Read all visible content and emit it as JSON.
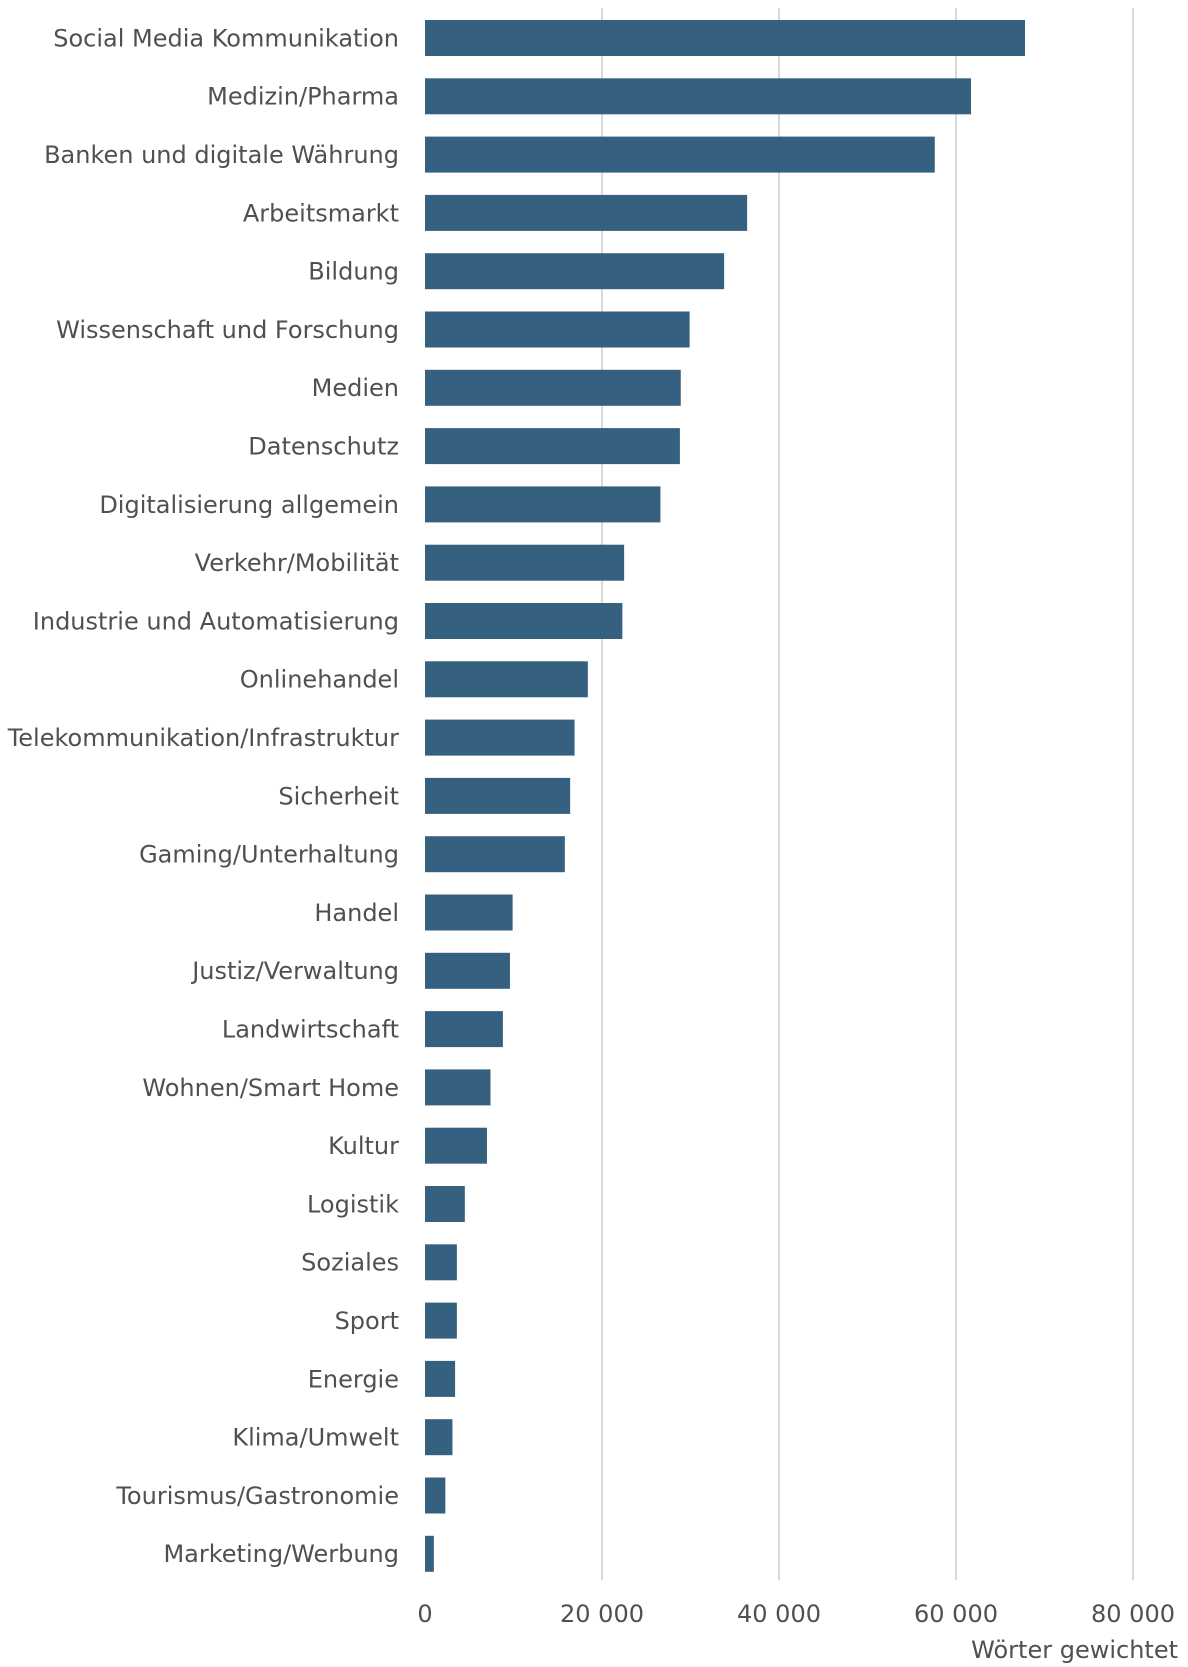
{
  "chart_data": {
    "type": "bar",
    "orientation": "horizontal",
    "title": "",
    "xlabel": "Wörter gewichtet",
    "ylabel": "",
    "xlim": [
      0,
      80000
    ],
    "x_ticks": [
      0,
      20000,
      40000,
      60000,
      80000
    ],
    "x_tick_labels": [
      "0",
      "20 000",
      "40 000",
      "60 000",
      "80 000"
    ],
    "grid": "vertical",
    "legend": "none",
    "bar_color": "#36607f",
    "categories": [
      "Social Media Kommunikation",
      "Medizin/Pharma",
      "Banken und digitale Währung",
      "Arbeitsmarkt",
      "Bildung",
      "Wissenschaft und Forschung",
      "Medien",
      "Datenschutz",
      "Digitalisierung allgemein",
      "Verkehr/Mobilität",
      "Industrie und Automatisierung",
      "Onlinehandel",
      "Telekommunikation/Infrastruktur",
      "Sicherheit",
      "Gaming/Unterhaltung",
      "Handel",
      "Justiz/Verwaltung",
      "Landwirtschaft",
      "Wohnen/Smart Home",
      "Kultur",
      "Logistik",
      "Soziales",
      "Sport",
      "Energie",
      "Klima/Umwelt",
      "Tourismus/Gastronomie",
      "Marketing/Werbung"
    ],
    "values": [
      67800,
      61700,
      57600,
      36400,
      33800,
      29900,
      28900,
      28800,
      26600,
      22500,
      22300,
      18400,
      16900,
      16400,
      15800,
      9900,
      9600,
      8800,
      7400,
      7000,
      4500,
      3600,
      3600,
      3400,
      3100,
      2300,
      1000
    ]
  }
}
